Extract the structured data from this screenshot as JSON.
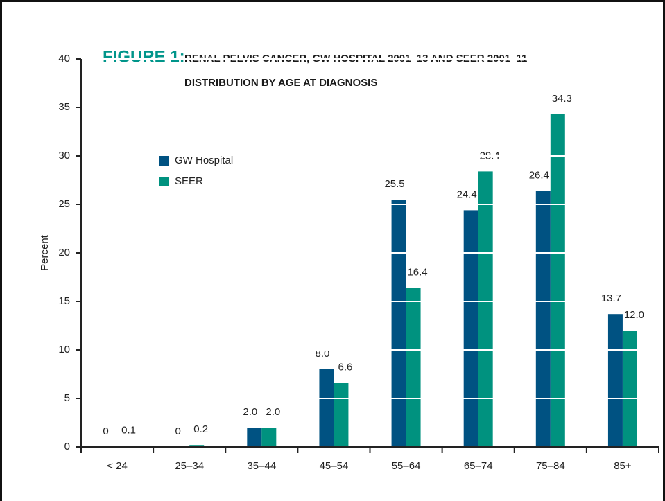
{
  "chart_data": {
    "type": "bar",
    "title_prefix": "FIGURE 1:",
    "title": [
      "RENAL PELVIS CANCER, GW HOSPITAL 2001–13 AND SEER 2001–11 –",
      "DISTRIBUTION BY AGE AT DIAGNOSIS"
    ],
    "y_label": "Percent",
    "categories": [
      "< 24",
      "25–34",
      "35–44",
      "45–54",
      "55–64",
      "65–74",
      "75–84",
      "85+"
    ],
    "series": [
      {
        "name": "GW Hospital",
        "color": "#005282",
        "values": [
          0,
          0,
          2,
          8,
          25.5,
          24.4,
          26.4,
          13.7
        ],
        "value_labels": [
          "0",
          "0",
          "2.0",
          "8.0",
          "25.5",
          "24.4",
          "26.4",
          "13.7"
        ]
      },
      {
        "name": "SEER",
        "color": "#00927f",
        "values": [
          0.1,
          0.2,
          2,
          6.6,
          16.4,
          28.4,
          34.3,
          12
        ],
        "value_labels": [
          "0.1",
          "0.2",
          "2.0",
          "6.6",
          "16.4",
          "28.4",
          "34.3",
          "12.0"
        ]
      }
    ],
    "ylim": [
      0,
      40
    ],
    "yticks": [
      0,
      5,
      10,
      15,
      20,
      25,
      30,
      35,
      40
    ],
    "grid": true,
    "grid_color": "#ffffff"
  }
}
